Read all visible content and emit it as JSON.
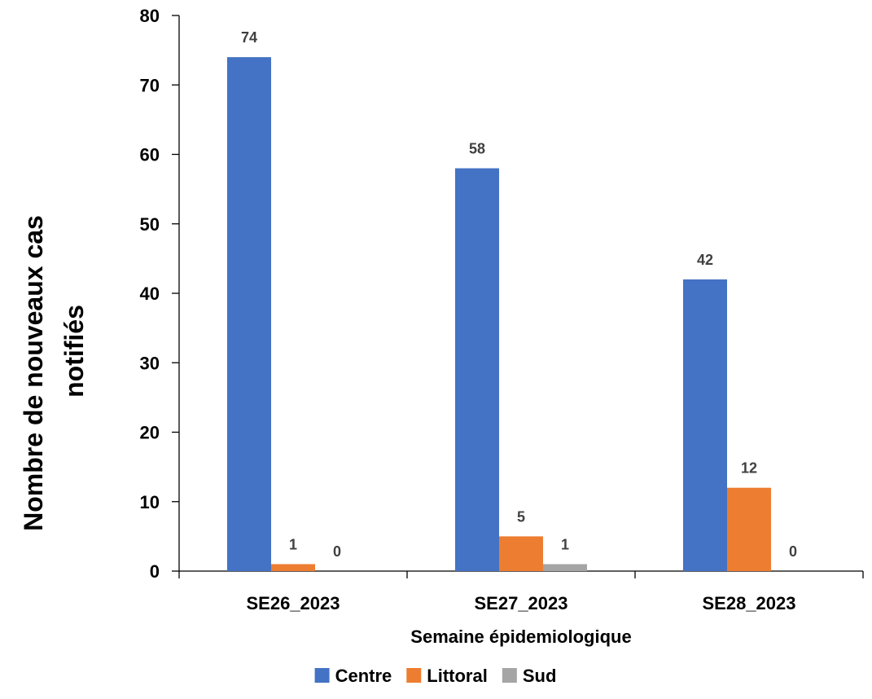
{
  "chart_data": {
    "type": "bar",
    "categories": [
      "SE26_2023",
      "SE27_2023",
      "SE28_2023"
    ],
    "series": [
      {
        "name": "Centre",
        "values": [
          74,
          58,
          42
        ],
        "color": "#4472C4"
      },
      {
        "name": "Littoral",
        "values": [
          1,
          5,
          12
        ],
        "color": "#ED7D31"
      },
      {
        "name": "Sud",
        "values": [
          0,
          1,
          0
        ],
        "color": "#A5A5A5"
      }
    ],
    "title": "",
    "xlabel": "Semaine épidemiologique",
    "ylabel_lines": [
      "Nombre de nouveaux cas",
      "notifiés"
    ],
    "ylim": [
      0,
      80
    ],
    "yticks": [
      0,
      10,
      20,
      30,
      40,
      50,
      60,
      70,
      80
    ],
    "grid": false,
    "legend": "bottom"
  }
}
